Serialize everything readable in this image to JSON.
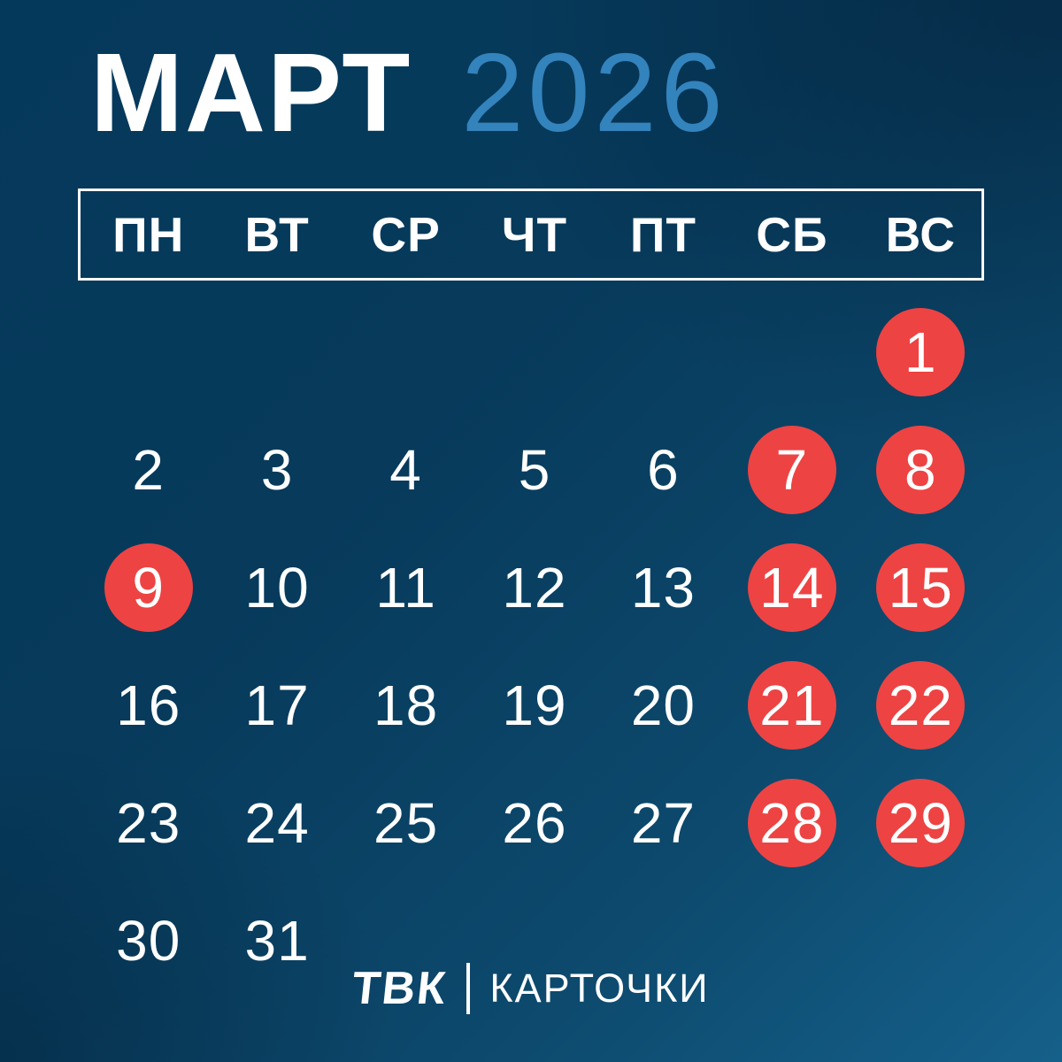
{
  "title": {
    "month": "МАРТ",
    "year": "2026"
  },
  "weekdays": [
    "ПН",
    "ВТ",
    "СР",
    "ЧТ",
    "ПТ",
    "СБ",
    "ВС"
  ],
  "calendar": {
    "days": [
      {
        "day": 1,
        "row": 1,
        "col": 7,
        "holiday": true
      },
      {
        "day": 2,
        "row": 2,
        "col": 1,
        "holiday": false
      },
      {
        "day": 3,
        "row": 2,
        "col": 2,
        "holiday": false
      },
      {
        "day": 4,
        "row": 2,
        "col": 3,
        "holiday": false
      },
      {
        "day": 5,
        "row": 2,
        "col": 4,
        "holiday": false
      },
      {
        "day": 6,
        "row": 2,
        "col": 5,
        "holiday": false
      },
      {
        "day": 7,
        "row": 2,
        "col": 6,
        "holiday": true
      },
      {
        "day": 8,
        "row": 2,
        "col": 7,
        "holiday": true
      },
      {
        "day": 9,
        "row": 3,
        "col": 1,
        "holiday": true
      },
      {
        "day": 10,
        "row": 3,
        "col": 2,
        "holiday": false
      },
      {
        "day": 11,
        "row": 3,
        "col": 3,
        "holiday": false
      },
      {
        "day": 12,
        "row": 3,
        "col": 4,
        "holiday": false
      },
      {
        "day": 13,
        "row": 3,
        "col": 5,
        "holiday": false
      },
      {
        "day": 14,
        "row": 3,
        "col": 6,
        "holiday": true
      },
      {
        "day": 15,
        "row": 3,
        "col": 7,
        "holiday": true
      },
      {
        "day": 16,
        "row": 4,
        "col": 1,
        "holiday": false
      },
      {
        "day": 17,
        "row": 4,
        "col": 2,
        "holiday": false
      },
      {
        "day": 18,
        "row": 4,
        "col": 3,
        "holiday": false
      },
      {
        "day": 19,
        "row": 4,
        "col": 4,
        "holiday": false
      },
      {
        "day": 20,
        "row": 4,
        "col": 5,
        "holiday": false
      },
      {
        "day": 21,
        "row": 4,
        "col": 6,
        "holiday": true
      },
      {
        "day": 22,
        "row": 4,
        "col": 7,
        "holiday": true
      },
      {
        "day": 23,
        "row": 5,
        "col": 1,
        "holiday": false
      },
      {
        "day": 24,
        "row": 5,
        "col": 2,
        "holiday": false
      },
      {
        "day": 25,
        "row": 5,
        "col": 3,
        "holiday": false
      },
      {
        "day": 26,
        "row": 5,
        "col": 4,
        "holiday": false
      },
      {
        "day": 27,
        "row": 5,
        "col": 5,
        "holiday": false
      },
      {
        "day": 28,
        "row": 5,
        "col": 6,
        "holiday": true
      },
      {
        "day": 29,
        "row": 5,
        "col": 7,
        "holiday": true
      },
      {
        "day": 30,
        "row": 6,
        "col": 1,
        "holiday": false
      },
      {
        "day": 31,
        "row": 6,
        "col": 2,
        "holiday": false
      }
    ]
  },
  "footer": {
    "brand": "ТВК",
    "caption": "КАРТОЧКИ"
  },
  "colors": {
    "accent_red": "#ee4343",
    "year_blue": "#3383bd",
    "bg_dark": "#002b4a",
    "bg_mid": "#0a3a58",
    "bg_light": "#15608a",
    "text": "#ffffff"
  }
}
